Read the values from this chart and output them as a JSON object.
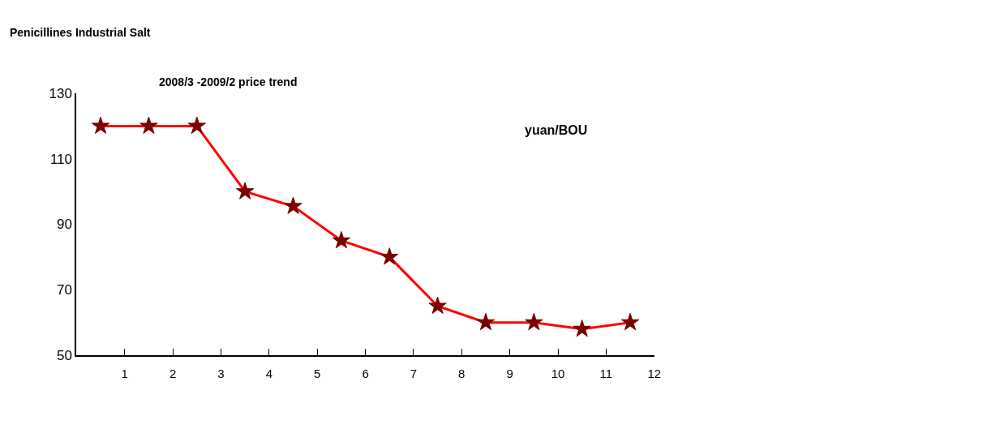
{
  "chart_data": {
    "type": "line",
    "title": "Penicillines Industrial Salt",
    "subtitle": "2008/3 -2009/2 price trend",
    "annotations": [
      "yuan/BOU"
    ],
    "x": [
      0.5,
      1.5,
      2.5,
      3.5,
      4.5,
      5.5,
      6.5,
      7.5,
      8.5,
      9.5,
      10.5,
      11.5
    ],
    "series": [
      {
        "color": "#ff0000",
        "values": [
          120,
          120,
          120,
          100,
          95.5,
          85,
          80,
          65,
          60,
          60,
          58,
          60
        ]
      }
    ],
    "xlim": [
      0,
      12
    ],
    "xticks": [
      1,
      2,
      3,
      4,
      5,
      6,
      7,
      8,
      9,
      10,
      11,
      12
    ],
    "ylim": [
      50,
      130
    ],
    "yticks": [
      50,
      70,
      90,
      110,
      130
    ],
    "marker": "star",
    "line_style": "solid"
  }
}
